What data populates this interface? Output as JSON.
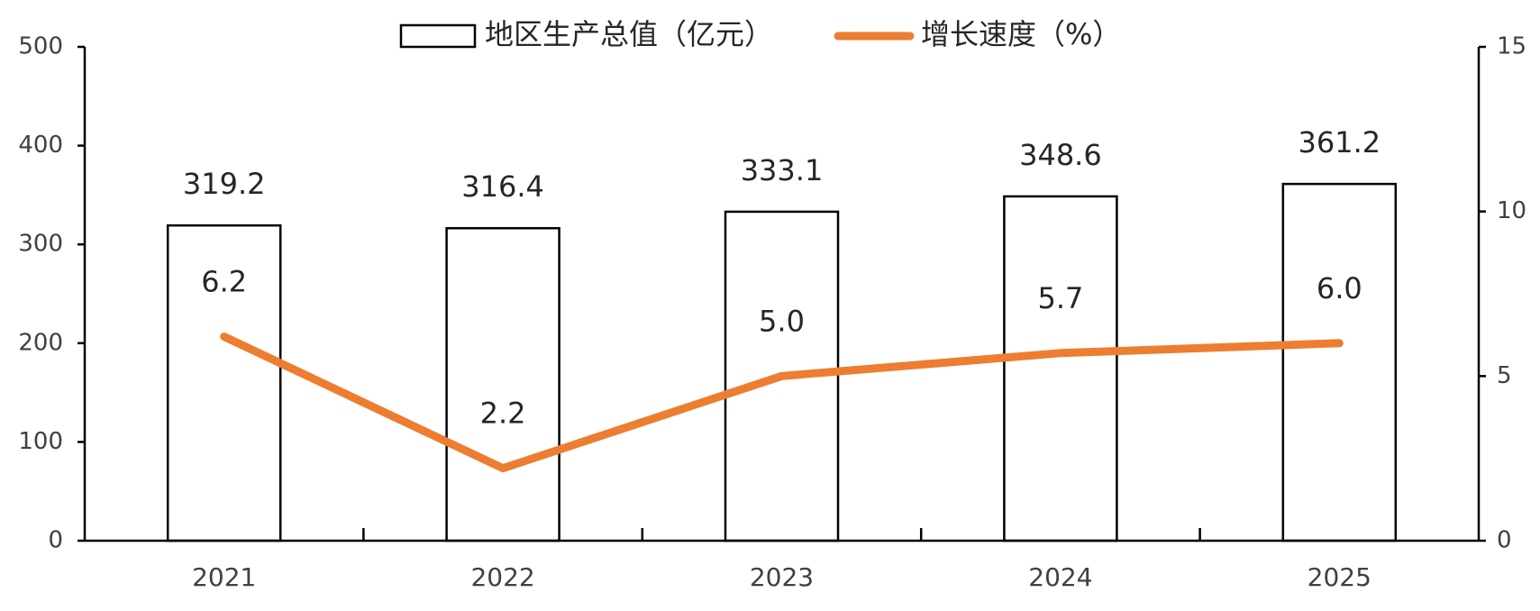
{
  "chart_data": {
    "type": "bar",
    "categories": [
      "2021",
      "2022",
      "2023",
      "2024",
      "2025"
    ],
    "series": [
      {
        "name": "地区生产总值（亿元）",
        "type": "bar",
        "axis": "left",
        "values": [
          319.2,
          316.4,
          333.1,
          348.6,
          361.2
        ],
        "labels": [
          "319.2",
          "316.4",
          "333.1",
          "348.6",
          "361.2"
        ]
      },
      {
        "name": "增长速度（%）",
        "type": "line",
        "axis": "right",
        "color": "#ED7D31",
        "values": [
          6.2,
          2.2,
          5.0,
          5.7,
          6.0
        ],
        "labels": [
          "6.2",
          "2.2",
          "5.0",
          "5.7",
          "6.0"
        ]
      }
    ],
    "y_left": {
      "lim": [
        0,
        500
      ],
      "ticks": [
        "0",
        "100",
        "200",
        "300",
        "400",
        "500"
      ]
    },
    "y_right": {
      "lim": [
        0,
        15
      ],
      "ticks": [
        "0",
        "5",
        "10",
        "15"
      ]
    },
    "legend": "top-center",
    "grid": false
  }
}
